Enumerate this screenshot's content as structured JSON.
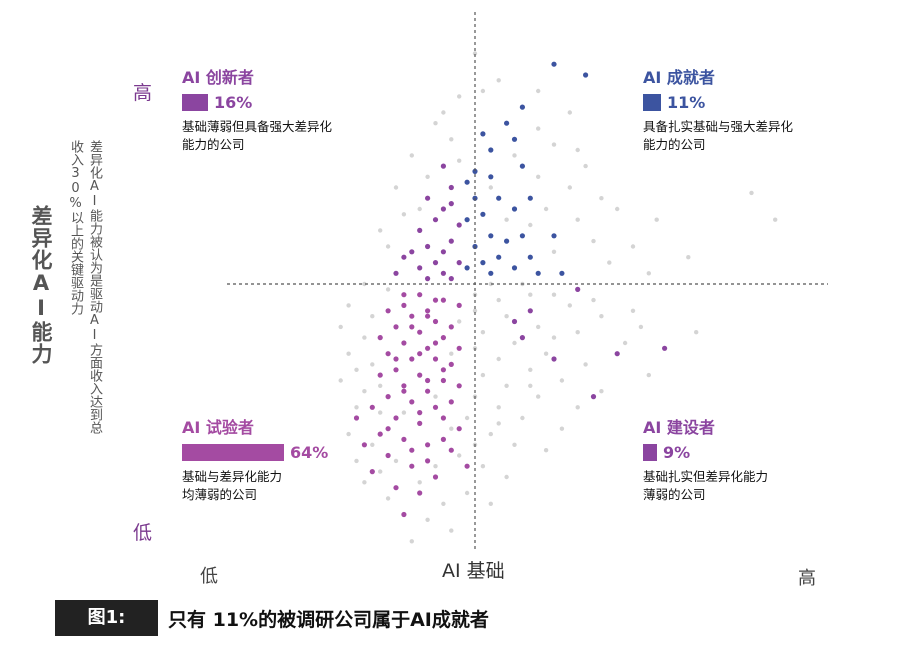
{
  "chart_data": {
    "type": "scatter",
    "x_axis": {
      "title": "AI 基础",
      "low": "低",
      "high": "高"
    },
    "y_axis": {
      "title": "差异化AI能力",
      "subtitle": "差异化AI能力被认为是驱动AI方面收入达到总收入30%以上的关键驱动力",
      "low": "低",
      "high": "高"
    },
    "xlim": [
      0,
      1
    ],
    "ylim": [
      0,
      1
    ],
    "divider": {
      "x": 0.5,
      "y": 0.5
    },
    "grid": false,
    "quadrants": [
      {
        "key": "innovators",
        "title": "AI 创新者",
        "percent": "16%",
        "share": 16,
        "color": "#8b45a0",
        "desc_lines": [
          "基础薄弱但具备强大差异化",
          "能力的公司"
        ]
      },
      {
        "key": "achievers",
        "title": "AI 成就者",
        "percent": "11%",
        "share": 11,
        "color": "#3c54a0",
        "desc_lines": [
          "具备扎实基础与强大差异化",
          "能力的公司"
        ]
      },
      {
        "key": "experimenters",
        "title": "AI 试验者",
        "percent": "64%",
        "share": 64,
        "color": "#a44ba2",
        "desc_lines": [
          "基础与差异化能力",
          "均薄弱的公司"
        ]
      },
      {
        "key": "builders",
        "title": "AI 建设者",
        "percent": "9%",
        "share": 9,
        "color": "#8b45a0",
        "desc_lines": [
          "基础扎实但差异化能力",
          "薄弱的公司"
        ]
      }
    ],
    "series": [
      {
        "name": "AI 成就者",
        "color": "#3c54a0",
        "points": [
          [
            0.56,
            0.83
          ],
          [
            0.54,
            0.8
          ],
          [
            0.55,
            0.77
          ],
          [
            0.51,
            0.78
          ],
          [
            0.52,
            0.75
          ],
          [
            0.5,
            0.71
          ],
          [
            0.52,
            0.7
          ],
          [
            0.49,
            0.69
          ],
          [
            0.5,
            0.66
          ],
          [
            0.53,
            0.66
          ],
          [
            0.55,
            0.64
          ],
          [
            0.57,
            0.66
          ],
          [
            0.51,
            0.63
          ],
          [
            0.49,
            0.62
          ],
          [
            0.52,
            0.59
          ],
          [
            0.54,
            0.58
          ],
          [
            0.56,
            0.59
          ],
          [
            0.5,
            0.57
          ],
          [
            0.53,
            0.55
          ],
          [
            0.51,
            0.54
          ],
          [
            0.49,
            0.53
          ],
          [
            0.55,
            0.53
          ],
          [
            0.58,
            0.52
          ],
          [
            0.61,
            0.52
          ],
          [
            0.57,
            0.55
          ],
          [
            0.52,
            0.52
          ],
          [
            0.64,
            0.89
          ],
          [
            0.6,
            0.91
          ],
          [
            0.56,
            0.72
          ],
          [
            0.6,
            0.59
          ]
        ]
      },
      {
        "name": "AI 创新者",
        "color": "#8b45a0",
        "points": [
          [
            0.46,
            0.72
          ],
          [
            0.47,
            0.68
          ],
          [
            0.44,
            0.66
          ],
          [
            0.46,
            0.64
          ],
          [
            0.45,
            0.62
          ],
          [
            0.48,
            0.61
          ],
          [
            0.43,
            0.6
          ],
          [
            0.47,
            0.58
          ],
          [
            0.44,
            0.57
          ],
          [
            0.46,
            0.56
          ],
          [
            0.42,
            0.56
          ],
          [
            0.45,
            0.54
          ],
          [
            0.48,
            0.54
          ],
          [
            0.43,
            0.53
          ],
          [
            0.46,
            0.52
          ],
          [
            0.4,
            0.52
          ],
          [
            0.44,
            0.51
          ],
          [
            0.47,
            0.51
          ],
          [
            0.41,
            0.55
          ],
          [
            0.47,
            0.65
          ]
        ]
      },
      {
        "name": "AI 建设者",
        "color": "#8b45a0",
        "points": [
          [
            0.57,
            0.45
          ],
          [
            0.63,
            0.49
          ],
          [
            0.56,
            0.4
          ],
          [
            0.6,
            0.36
          ],
          [
            0.68,
            0.37
          ],
          [
            0.74,
            0.38
          ],
          [
            0.65,
            0.29
          ],
          [
            0.55,
            0.43
          ]
        ]
      },
      {
        "name": "AI 试验者",
        "color": "#a44ba2",
        "points": [
          [
            0.43,
            0.48
          ],
          [
            0.46,
            0.47
          ],
          [
            0.41,
            0.46
          ],
          [
            0.44,
            0.45
          ],
          [
            0.48,
            0.46
          ],
          [
            0.39,
            0.45
          ],
          [
            0.42,
            0.44
          ],
          [
            0.45,
            0.43
          ],
          [
            0.47,
            0.42
          ],
          [
            0.4,
            0.42
          ],
          [
            0.43,
            0.41
          ],
          [
            0.46,
            0.4
          ],
          [
            0.38,
            0.4
          ],
          [
            0.41,
            0.39
          ],
          [
            0.44,
            0.38
          ],
          [
            0.48,
            0.38
          ],
          [
            0.39,
            0.37
          ],
          [
            0.42,
            0.36
          ],
          [
            0.45,
            0.36
          ],
          [
            0.47,
            0.35
          ],
          [
            0.4,
            0.34
          ],
          [
            0.43,
            0.33
          ],
          [
            0.46,
            0.32
          ],
          [
            0.38,
            0.33
          ],
          [
            0.41,
            0.31
          ],
          [
            0.44,
            0.3
          ],
          [
            0.48,
            0.31
          ],
          [
            0.39,
            0.29
          ],
          [
            0.42,
            0.28
          ],
          [
            0.45,
            0.27
          ],
          [
            0.37,
            0.27
          ],
          [
            0.4,
            0.25
          ],
          [
            0.43,
            0.24
          ],
          [
            0.46,
            0.25
          ],
          [
            0.38,
            0.22
          ],
          [
            0.41,
            0.21
          ],
          [
            0.44,
            0.2
          ],
          [
            0.47,
            0.19
          ],
          [
            0.39,
            0.18
          ],
          [
            0.42,
            0.16
          ],
          [
            0.45,
            0.14
          ],
          [
            0.37,
            0.15
          ],
          [
            0.4,
            0.12
          ],
          [
            0.43,
            0.11
          ],
          [
            0.41,
            0.07
          ],
          [
            0.44,
            0.44
          ],
          [
            0.42,
            0.42
          ],
          [
            0.45,
            0.39
          ],
          [
            0.43,
            0.37
          ],
          [
            0.4,
            0.36
          ],
          [
            0.46,
            0.34
          ],
          [
            0.44,
            0.32
          ],
          [
            0.41,
            0.3
          ],
          [
            0.43,
            0.26
          ],
          [
            0.39,
            0.23
          ],
          [
            0.46,
            0.21
          ],
          [
            0.42,
            0.19
          ],
          [
            0.44,
            0.17
          ],
          [
            0.36,
            0.2
          ],
          [
            0.48,
            0.23
          ],
          [
            0.47,
            0.28
          ],
          [
            0.35,
            0.25
          ],
          [
            0.49,
            0.16
          ],
          [
            0.45,
            0.47
          ],
          [
            0.41,
            0.48
          ]
        ]
      },
      {
        "name": "",
        "color": "#d4d4d4",
        "points": [
          [
            0.5,
            0.93
          ],
          [
            0.53,
            0.88
          ],
          [
            0.48,
            0.85
          ],
          [
            0.58,
            0.86
          ],
          [
            0.62,
            0.82
          ],
          [
            0.45,
            0.8
          ],
          [
            0.47,
            0.77
          ],
          [
            0.55,
            0.74
          ],
          [
            0.6,
            0.76
          ],
          [
            0.64,
            0.72
          ],
          [
            0.42,
            0.74
          ],
          [
            0.44,
            0.7
          ],
          [
            0.58,
            0.7
          ],
          [
            0.62,
            0.68
          ],
          [
            0.66,
            0.66
          ],
          [
            0.4,
            0.68
          ],
          [
            0.41,
            0.63
          ],
          [
            0.59,
            0.64
          ],
          [
            0.63,
            0.62
          ],
          [
            0.68,
            0.64
          ],
          [
            0.73,
            0.62
          ],
          [
            0.85,
            0.67
          ],
          [
            0.38,
            0.6
          ],
          [
            0.57,
            0.61
          ],
          [
            0.65,
            0.58
          ],
          [
            0.7,
            0.57
          ],
          [
            0.77,
            0.55
          ],
          [
            0.39,
            0.57
          ],
          [
            0.6,
            0.56
          ],
          [
            0.67,
            0.54
          ],
          [
            0.72,
            0.52
          ],
          [
            0.36,
            0.5
          ],
          [
            0.5,
            0.48
          ],
          [
            0.53,
            0.47
          ],
          [
            0.57,
            0.48
          ],
          [
            0.62,
            0.46
          ],
          [
            0.66,
            0.44
          ],
          [
            0.71,
            0.42
          ],
          [
            0.78,
            0.41
          ],
          [
            0.34,
            0.46
          ],
          [
            0.5,
            0.45
          ],
          [
            0.54,
            0.44
          ],
          [
            0.58,
            0.42
          ],
          [
            0.63,
            0.41
          ],
          [
            0.69,
            0.39
          ],
          [
            0.33,
            0.42
          ],
          [
            0.36,
            0.4
          ],
          [
            0.51,
            0.41
          ],
          [
            0.55,
            0.39
          ],
          [
            0.59,
            0.37
          ],
          [
            0.64,
            0.35
          ],
          [
            0.72,
            0.33
          ],
          [
            0.34,
            0.37
          ],
          [
            0.37,
            0.35
          ],
          [
            0.5,
            0.38
          ],
          [
            0.53,
            0.36
          ],
          [
            0.57,
            0.34
          ],
          [
            0.61,
            0.32
          ],
          [
            0.66,
            0.3
          ],
          [
            0.33,
            0.32
          ],
          [
            0.36,
            0.3
          ],
          [
            0.51,
            0.33
          ],
          [
            0.54,
            0.31
          ],
          [
            0.58,
            0.29
          ],
          [
            0.63,
            0.27
          ],
          [
            0.35,
            0.27
          ],
          [
            0.38,
            0.26
          ],
          [
            0.5,
            0.29
          ],
          [
            0.53,
            0.27
          ],
          [
            0.56,
            0.25
          ],
          [
            0.61,
            0.23
          ],
          [
            0.34,
            0.22
          ],
          [
            0.37,
            0.2
          ],
          [
            0.49,
            0.25
          ],
          [
            0.52,
            0.22
          ],
          [
            0.55,
            0.2
          ],
          [
            0.59,
            0.19
          ],
          [
            0.35,
            0.17
          ],
          [
            0.38,
            0.15
          ],
          [
            0.48,
            0.18
          ],
          [
            0.51,
            0.16
          ],
          [
            0.54,
            0.14
          ],
          [
            0.36,
            0.13
          ],
          [
            0.39,
            0.1
          ],
          [
            0.46,
            0.09
          ],
          [
            0.49,
            0.11
          ],
          [
            0.52,
            0.09
          ],
          [
            0.44,
            0.06
          ],
          [
            0.47,
            0.04
          ],
          [
            0.42,
            0.02
          ],
          [
            0.88,
            0.62
          ],
          [
            0.54,
            0.62
          ],
          [
            0.52,
            0.68
          ],
          [
            0.48,
            0.73
          ],
          [
            0.43,
            0.64
          ],
          [
            0.39,
            0.49
          ],
          [
            0.52,
            0.5
          ],
          [
            0.56,
            0.5
          ],
          [
            0.6,
            0.48
          ],
          [
            0.37,
            0.44
          ],
          [
            0.48,
            0.43
          ],
          [
            0.35,
            0.34
          ],
          [
            0.47,
            0.37
          ],
          [
            0.45,
            0.29
          ],
          [
            0.38,
            0.31
          ],
          [
            0.41,
            0.26
          ],
          [
            0.47,
            0.23
          ],
          [
            0.4,
            0.17
          ],
          [
            0.45,
            0.16
          ],
          [
            0.43,
            0.13
          ],
          [
            0.5,
            0.2
          ],
          [
            0.53,
            0.24
          ],
          [
            0.57,
            0.31
          ],
          [
            0.6,
            0.4
          ],
          [
            0.65,
            0.47
          ],
          [
            0.7,
            0.45
          ],
          [
            0.58,
            0.79
          ],
          [
            0.63,
            0.75
          ],
          [
            0.46,
            0.82
          ],
          [
            0.51,
            0.86
          ]
        ]
      }
    ]
  },
  "caption": {
    "tag": "图1:",
    "text": "只有 11%的被调研公司属于AI成就者"
  }
}
